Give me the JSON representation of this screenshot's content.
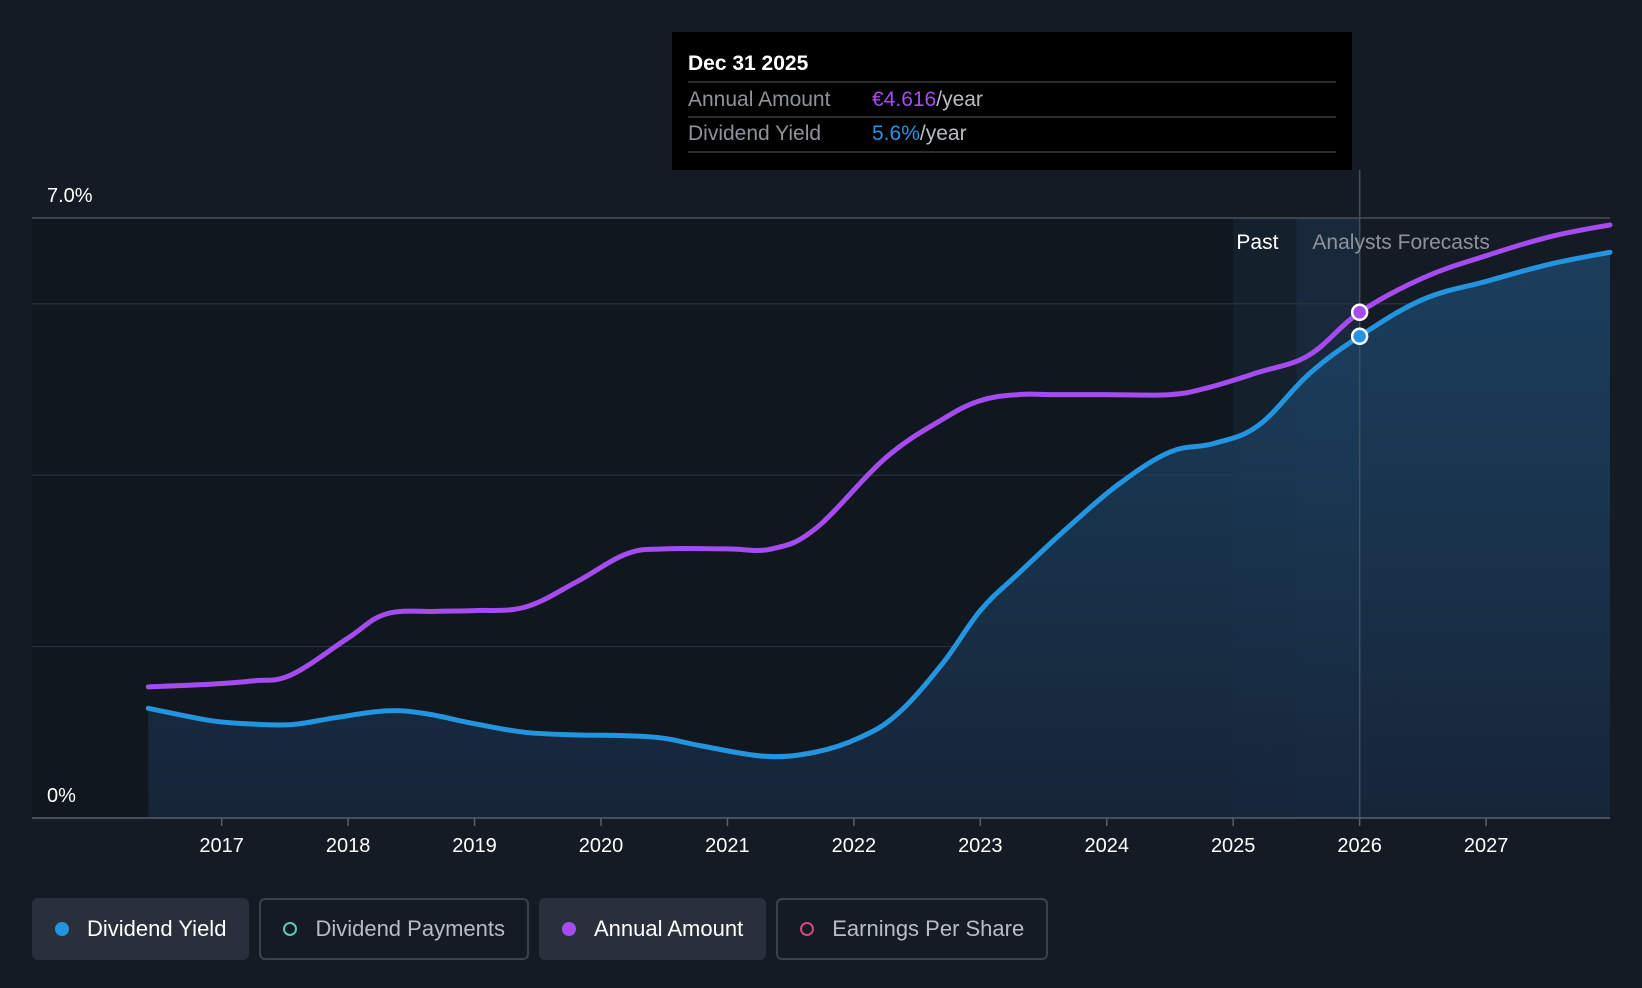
{
  "tooltip": {
    "date": "Dec 31 2025",
    "rows": [
      {
        "label": "Annual Amount",
        "value": "€4.616",
        "suffix": "/year",
        "color": "#a64bf0"
      },
      {
        "label": "Dividend Yield",
        "value": "5.6%",
        "suffix": "/year",
        "color": "#2394df"
      }
    ]
  },
  "regions": {
    "past_label": "Past",
    "forecast_label": "Analysts Forecasts"
  },
  "legend": [
    {
      "label": "Dividend Yield",
      "color": "#2394df",
      "filled": true,
      "active": true
    },
    {
      "label": "Dividend Payments",
      "color": "#5fc7b8",
      "filled": false,
      "active": false
    },
    {
      "label": "Annual Amount",
      "color": "#a64bf0",
      "filled": true,
      "active": true
    },
    {
      "label": "Earnings Per Share",
      "color": "#d0497b",
      "filled": false,
      "active": false
    }
  ],
  "chart_data": {
    "type": "line",
    "x_ticks": [
      "2017",
      "2018",
      "2019",
      "2020",
      "2021",
      "2022",
      "2023",
      "2024",
      "2025",
      "2026",
      "2027"
    ],
    "y_ticks": [
      "0%",
      "7.0%"
    ],
    "ylim": [
      0,
      7.0
    ],
    "xlim": [
      2015.5,
      2027.98
    ],
    "past_start": 2025.0,
    "forecast_start": 2025.5,
    "highlight_x": 2026.0,
    "grid": true,
    "series": [
      {
        "name": "Dividend Yield",
        "color": "#2394df",
        "area": true,
        "points": [
          [
            2016.42,
            1.28
          ],
          [
            2016.9,
            1.14
          ],
          [
            2017.2,
            1.1
          ],
          [
            2017.55,
            1.09
          ],
          [
            2017.9,
            1.17
          ],
          [
            2018.3,
            1.25
          ],
          [
            2018.6,
            1.22
          ],
          [
            2019.0,
            1.1
          ],
          [
            2019.4,
            1.0
          ],
          [
            2019.8,
            0.97
          ],
          [
            2020.2,
            0.96
          ],
          [
            2020.5,
            0.93
          ],
          [
            2020.8,
            0.84
          ],
          [
            2021.3,
            0.72
          ],
          [
            2021.7,
            0.77
          ],
          [
            2022.05,
            0.94
          ],
          [
            2022.35,
            1.22
          ],
          [
            2022.7,
            1.8
          ],
          [
            2023.0,
            2.42
          ],
          [
            2023.3,
            2.85
          ],
          [
            2023.7,
            3.4
          ],
          [
            2024.1,
            3.9
          ],
          [
            2024.5,
            4.27
          ],
          [
            2024.85,
            4.37
          ],
          [
            2025.2,
            4.58
          ],
          [
            2025.6,
            5.18
          ],
          [
            2026.0,
            5.62
          ],
          [
            2026.5,
            6.05
          ],
          [
            2027.0,
            6.26
          ],
          [
            2027.5,
            6.46
          ],
          [
            2027.98,
            6.6
          ]
        ]
      },
      {
        "name": "Annual Amount",
        "color": "#a64bf0",
        "area": false,
        "points": [
          [
            2016.42,
            1.53
          ],
          [
            2016.9,
            1.56
          ],
          [
            2017.25,
            1.6
          ],
          [
            2017.55,
            1.67
          ],
          [
            2018.0,
            2.1
          ],
          [
            2018.3,
            2.38
          ],
          [
            2018.7,
            2.41
          ],
          [
            2019.0,
            2.42
          ],
          [
            2019.4,
            2.46
          ],
          [
            2019.8,
            2.75
          ],
          [
            2020.2,
            3.08
          ],
          [
            2020.5,
            3.14
          ],
          [
            2021.0,
            3.14
          ],
          [
            2021.35,
            3.14
          ],
          [
            2021.7,
            3.38
          ],
          [
            2022.25,
            4.2
          ],
          [
            2022.7,
            4.65
          ],
          [
            2023.0,
            4.87
          ],
          [
            2023.3,
            4.94
          ],
          [
            2023.6,
            4.94
          ],
          [
            2024.0,
            4.94
          ],
          [
            2024.5,
            4.94
          ],
          [
            2024.8,
            5.02
          ],
          [
            2025.2,
            5.2
          ],
          [
            2025.6,
            5.4
          ],
          [
            2026.0,
            5.9
          ],
          [
            2026.5,
            6.3
          ],
          [
            2027.0,
            6.56
          ],
          [
            2027.5,
            6.78
          ],
          [
            2027.98,
            6.92
          ]
        ]
      }
    ],
    "markers": [
      {
        "series": "Annual Amount",
        "x": 2026.0,
        "y": 5.9
      },
      {
        "series": "Dividend Yield",
        "x": 2026.0,
        "y": 5.62
      }
    ]
  }
}
